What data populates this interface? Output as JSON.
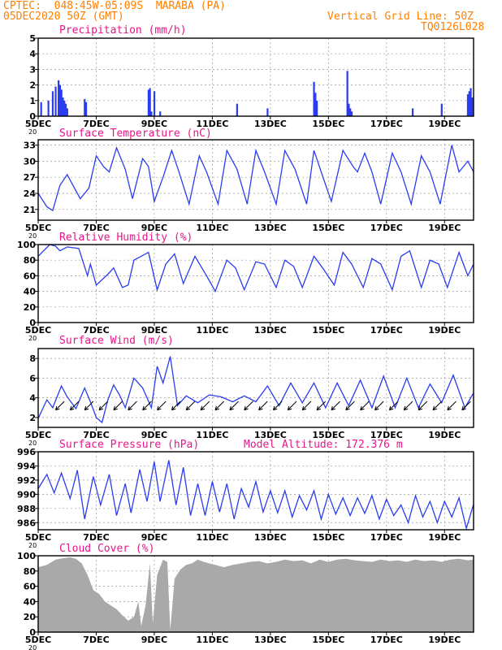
{
  "header": {
    "line1": "CPTEC:  048:45W-05:09S  MARABA (PA)",
    "line2": "05DEC2020 50Z (GMT)",
    "right1": "Vertical Grid Line: 50Z",
    "right2": "TQ0126L028"
  },
  "colors": {
    "header": "#ff7f00",
    "title": "#e8168a",
    "line": "#2a3cf0",
    "bars": "#2a3cf0",
    "cloud": "#a9a9a9",
    "arrow": "#000000"
  },
  "x_axis": {
    "day_range": [
      5,
      20
    ],
    "ticks": [
      "5DEC",
      "7DEC",
      "9DEC",
      "11DEC",
      "13DEC",
      "15DEC",
      "17DEC",
      "19DEC"
    ],
    "stub_label": "20"
  },
  "chart_data": [
    {
      "id": "precip",
      "type": "bar",
      "title": "Precipitation (mm/h)",
      "ylim": [
        0,
        5
      ],
      "yticks": [
        "0",
        "1",
        "2",
        "3",
        "4",
        "5"
      ],
      "x_unit": "day",
      "x": [
        5.1,
        5.35,
        5.5,
        5.6,
        5.7,
        5.75,
        5.8,
        5.85,
        5.9,
        5.95,
        6.0,
        6.6,
        6.65,
        8.8,
        8.85,
        8.9,
        9.0,
        9.2,
        11.85,
        12.9,
        14.5,
        14.55,
        14.6,
        15.65,
        15.7,
        15.75,
        15.8,
        17.9,
        18.9,
        19.8,
        19.85,
        19.9,
        19.95
      ],
      "values": [
        0.9,
        1.0,
        1.6,
        1.9,
        2.3,
        2.0,
        1.7,
        1.2,
        1.0,
        0.8,
        0.5,
        1.1,
        0.9,
        1.7,
        1.8,
        0.3,
        1.6,
        0.3,
        0.8,
        0.5,
        2.2,
        1.5,
        1.0,
        2.9,
        0.8,
        0.5,
        0.3,
        0.5,
        0.8,
        1.4,
        1.6,
        1.8,
        1.2
      ]
    },
    {
      "id": "temp",
      "type": "line",
      "title": "Surface Temperature (nC)",
      "ylim": [
        19,
        34
      ],
      "yticks": [
        21,
        24,
        27,
        30,
        33
      ],
      "x_unit": "day",
      "series": [
        {
          "x": [
            5.0,
            5.3,
            5.5,
            5.75,
            6.0,
            6.45,
            6.75,
            7.0,
            7.25,
            7.45,
            7.7,
            8.0,
            8.25,
            8.6,
            8.8,
            9.0,
            9.3,
            9.6,
            9.85,
            10.2,
            10.55,
            10.8,
            11.2,
            11.5,
            11.85,
            12.2,
            12.5,
            12.8,
            13.2,
            13.5,
            13.85,
            14.25,
            14.5,
            14.75,
            15.1,
            15.5,
            15.85,
            16.0,
            16.25,
            16.5,
            16.8,
            17.2,
            17.5,
            17.85,
            18.2,
            18.5,
            18.85,
            19.25,
            19.5,
            19.8,
            20.0
          ],
          "y": [
            24.0,
            21.5,
            20.8,
            25.5,
            27.5,
            23.0,
            25.0,
            31.0,
            29.0,
            28.0,
            32.5,
            28.5,
            23.0,
            30.5,
            29.0,
            22.5,
            27.0,
            32.0,
            28.0,
            22.0,
            31.0,
            28.0,
            22.0,
            32.0,
            28.5,
            22.0,
            32.0,
            28.0,
            22.0,
            32.0,
            28.5,
            22.0,
            32.0,
            28.0,
            22.5,
            32.0,
            29.0,
            28.0,
            31.5,
            28.0,
            22.0,
            31.5,
            28.0,
            22.0,
            31.0,
            28.0,
            22.0,
            33.0,
            28.0,
            30.0,
            28.0
          ]
        }
      ]
    },
    {
      "id": "rh",
      "type": "line",
      "title": "Relative Humidity (%)",
      "ylim": [
        0,
        100
      ],
      "yticks": [
        0,
        20,
        40,
        60,
        80,
        100
      ],
      "x_unit": "day",
      "series": [
        {
          "x": [
            5.0,
            5.4,
            5.6,
            5.75,
            6.0,
            6.4,
            6.7,
            6.8,
            7.0,
            7.4,
            7.6,
            7.9,
            8.1,
            8.3,
            8.8,
            9.1,
            9.4,
            9.7,
            10.0,
            10.4,
            10.8,
            11.1,
            11.5,
            11.8,
            12.1,
            12.5,
            12.8,
            13.2,
            13.5,
            13.8,
            14.1,
            14.5,
            14.8,
            15.2,
            15.5,
            15.8,
            16.2,
            16.5,
            16.8,
            17.2,
            17.5,
            17.8,
            18.2,
            18.5,
            18.8,
            19.1,
            19.5,
            19.8,
            20.0
          ],
          "y": [
            85,
            100,
            98,
            92,
            97,
            95,
            60,
            75,
            48,
            62,
            70,
            45,
            48,
            80,
            90,
            42,
            75,
            88,
            50,
            85,
            60,
            40,
            80,
            70,
            42,
            78,
            75,
            45,
            80,
            72,
            45,
            85,
            70,
            48,
            90,
            75,
            45,
            82,
            75,
            42,
            85,
            92,
            45,
            80,
            75,
            45,
            90,
            60,
            75
          ]
        }
      ]
    },
    {
      "id": "wind",
      "type": "line",
      "title": "Surface Wind (m/s)",
      "ylim": [
        1,
        9
      ],
      "yticks": [
        2,
        4,
        6,
        8
      ],
      "x_unit": "day",
      "series": [
        {
          "x": [
            5.0,
            5.3,
            5.5,
            5.8,
            6.0,
            6.3,
            6.6,
            6.8,
            7.0,
            7.2,
            7.4,
            7.6,
            7.8,
            8.0,
            8.3,
            8.6,
            8.9,
            9.1,
            9.3,
            9.55,
            9.8,
            10.1,
            10.5,
            10.9,
            11.3,
            11.7,
            12.1,
            12.5,
            12.9,
            13.3,
            13.7,
            14.1,
            14.5,
            14.9,
            15.3,
            15.7,
            16.1,
            16.5,
            16.9,
            17.3,
            17.7,
            18.1,
            18.5,
            18.9,
            19.3,
            19.7,
            20.0
          ],
          "y": [
            1.9,
            3.8,
            3.0,
            5.2,
            4.1,
            2.9,
            5.0,
            3.6,
            2.0,
            1.5,
            3.8,
            5.3,
            4.3,
            3.0,
            6.0,
            5.0,
            3.0,
            7.2,
            5.5,
            8.2,
            3.2,
            4.2,
            3.5,
            4.3,
            4.1,
            3.6,
            4.2,
            3.6,
            5.2,
            3.2,
            5.5,
            3.5,
            5.5,
            3.0,
            5.5,
            3.2,
            5.8,
            3.0,
            6.2,
            3.0,
            6.0,
            3.0,
            5.4,
            3.5,
            6.3,
            3.0,
            4.5
          ]
        }
      ],
      "arrows_dir_deg": 225
    },
    {
      "id": "press",
      "type": "line",
      "title": "Surface Pressure (hPa)",
      "annotation": "Model Altitude: 172.376 m",
      "ylim": [
        985,
        996
      ],
      "yticks": [
        986,
        988,
        990,
        992,
        994,
        996
      ],
      "x_unit": "day",
      "series": [
        {
          "x": [
            5.0,
            5.3,
            5.55,
            5.8,
            6.1,
            6.35,
            6.6,
            6.9,
            7.15,
            7.45,
            7.7,
            8.0,
            8.2,
            8.5,
            8.75,
            9.0,
            9.2,
            9.5,
            9.75,
            10.0,
            10.25,
            10.5,
            10.75,
            11.0,
            11.25,
            11.5,
            11.75,
            12.0,
            12.25,
            12.5,
            12.75,
            13.0,
            13.25,
            13.5,
            13.75,
            14.0,
            14.25,
            14.5,
            14.75,
            15.0,
            15.25,
            15.5,
            15.75,
            16.0,
            16.25,
            16.5,
            16.75,
            17.0,
            17.25,
            17.5,
            17.75,
            18.0,
            18.25,
            18.5,
            18.75,
            19.0,
            19.25,
            19.5,
            19.75,
            20.0
          ],
          "y": [
            990.8,
            992.8,
            990.2,
            993.0,
            989.4,
            993.4,
            986.5,
            992.5,
            988.5,
            992.8,
            987.0,
            991.5,
            987.4,
            993.5,
            989.0,
            994.6,
            989.0,
            994.8,
            988.5,
            993.8,
            987.0,
            991.5,
            987.0,
            991.8,
            987.5,
            991.5,
            986.5,
            990.8,
            988.2,
            991.8,
            987.5,
            990.5,
            987.4,
            990.5,
            986.8,
            989.8,
            987.8,
            990.5,
            986.5,
            990.0,
            987.2,
            989.5,
            987.0,
            989.5,
            987.3,
            989.8,
            986.5,
            989.3,
            987.0,
            988.5,
            986.0,
            989.8,
            986.8,
            989.0,
            986.0,
            989.0,
            986.8,
            989.5,
            985.2,
            988.6
          ]
        }
      ]
    },
    {
      "id": "cloud",
      "type": "area",
      "title": "Cloud Cover (%)",
      "ylim": [
        0,
        100
      ],
      "yticks": [
        0,
        20,
        40,
        60,
        80,
        100
      ],
      "x_unit": "day",
      "series": [
        {
          "x": [
            5.0,
            5.3,
            5.6,
            5.9,
            6.1,
            6.3,
            6.5,
            6.7,
            6.9,
            7.1,
            7.3,
            7.5,
            7.7,
            7.9,
            8.1,
            8.3,
            8.45,
            8.55,
            8.7,
            8.85,
            8.95,
            9.1,
            9.3,
            9.45,
            9.55,
            9.7,
            9.9,
            10.1,
            10.3,
            10.5,
            10.7,
            10.9,
            11.1,
            11.4,
            11.7,
            12.0,
            12.3,
            12.6,
            12.9,
            13.2,
            13.5,
            13.8,
            14.1,
            14.4,
            14.7,
            15.0,
            15.3,
            15.6,
            15.9,
            16.2,
            16.5,
            16.8,
            17.1,
            17.4,
            17.7,
            18.0,
            18.3,
            18.6,
            18.9,
            19.2,
            19.5,
            19.8,
            20.0
          ],
          "y": [
            85,
            88,
            95,
            97,
            98,
            96,
            90,
            75,
            55,
            50,
            40,
            35,
            30,
            22,
            15,
            20,
            40,
            8,
            35,
            90,
            12,
            75,
            95,
            92,
            3,
            70,
            82,
            88,
            90,
            95,
            92,
            90,
            88,
            85,
            88,
            90,
            92,
            93,
            90,
            92,
            95,
            93,
            94,
            90,
            95,
            92,
            95,
            96,
            94,
            93,
            92,
            95,
            93,
            94,
            92,
            95,
            93,
            94,
            92,
            95,
            96,
            94,
            95
          ]
        }
      ]
    }
  ]
}
